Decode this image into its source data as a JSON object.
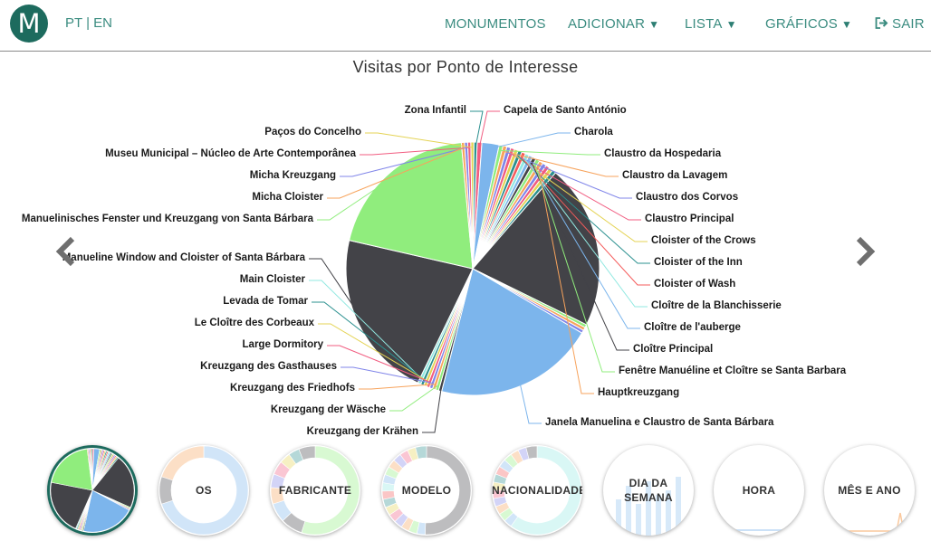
{
  "header": {
    "logo_letter": "M",
    "lang_pt": "PT",
    "lang_sep": "|",
    "lang_en": "EN",
    "nav": {
      "monumentos": "MONUMENTOS",
      "adicionar": "ADICIONAR",
      "lista": "LISTA",
      "graficos": "GRÁFICOS",
      "sair": "SAIR"
    },
    "caret_glyph": "▼"
  },
  "chart_data": {
    "type": "pie",
    "title": "Visitas por Ponto de Interesse",
    "slices": [
      {
        "label": "Capela de Santo António",
        "value": 0.6,
        "color": "#f15c80"
      },
      {
        "label": "Charola",
        "value": 2.2,
        "color": "#7cb5ec"
      },
      {
        "label": "Claustro da Hospedaria",
        "value": 0.5,
        "color": "#90ed7d"
      },
      {
        "label": "Claustro da Lavagem",
        "value": 0.5,
        "color": "#f7a35c"
      },
      {
        "label": "Claustro dos Corvos",
        "value": 0.5,
        "color": "#8085e9"
      },
      {
        "label": "Claustro Principal",
        "value": 0.5,
        "color": "#f15c80"
      },
      {
        "label": "Cloister of the Crows",
        "value": 0.5,
        "color": "#e4d354"
      },
      {
        "label": "Cloister of the Inn",
        "value": 0.5,
        "color": "#2b908f"
      },
      {
        "label": "Cloister of Wash",
        "value": 0.5,
        "color": "#f45b5b"
      },
      {
        "label": "Cloître de la Blanchisserie",
        "value": 0.5,
        "color": "#91e8e1"
      },
      {
        "label": "Cloître de l'auberge",
        "value": 0.5,
        "color": "#7cb5ec"
      },
      {
        "label": "Cloître Principal",
        "value": 0.5,
        "color": "#434348"
      },
      {
        "label": "Fenêtre Manuéline et Cloître se Santa Barbara",
        "value": 0.5,
        "color": "#90ed7d"
      },
      {
        "label": "Hauptkreuzgang",
        "value": 0.5,
        "color": "#f7a35c"
      },
      {
        "label": "",
        "value": 0.5,
        "color": "#8085e9"
      },
      {
        "label": "",
        "value": 0.5,
        "color": "#f15c80"
      },
      {
        "label": "",
        "value": 0.5,
        "color": "#e4d354"
      },
      {
        "label": "",
        "value": 0.5,
        "color": "#2b908f"
      },
      {
        "label": "",
        "value": 21.0,
        "color": "#434348"
      },
      {
        "label": "",
        "value": 0.4,
        "color": "#90ed7d"
      },
      {
        "label": "",
        "value": 0.4,
        "color": "#f7a35c"
      },
      {
        "label": "",
        "value": 0.4,
        "color": "#8085e9"
      },
      {
        "label": "Janela Manuelina e Claustro de Santa Bárbara",
        "value": 20.5,
        "color": "#7cb5ec"
      },
      {
        "label": "Kreuzgang der Krähen",
        "value": 0.4,
        "color": "#434348"
      },
      {
        "label": "Kreuzgang der Wäsche",
        "value": 0.4,
        "color": "#90ed7d"
      },
      {
        "label": "Kreuzgang des Friedhofs",
        "value": 0.4,
        "color": "#f7a35c"
      },
      {
        "label": "Kreuzgang des Gasthauses",
        "value": 0.4,
        "color": "#8085e9"
      },
      {
        "label": "Large Dormitory",
        "value": 0.4,
        "color": "#f15c80"
      },
      {
        "label": "Le Cloître des Corbeaux",
        "value": 0.4,
        "color": "#e4d354"
      },
      {
        "label": "Levada de Tomar",
        "value": 0.4,
        "color": "#2b908f"
      },
      {
        "label": "Main Cloister",
        "value": 0.4,
        "color": "#91e8e1"
      },
      {
        "label": "Manueline Window and Cloister of Santa Bárbara",
        "value": 21.5,
        "color": "#434348"
      },
      {
        "label": "Manuelinisches Fenster und Kreuzgang von Santa Bárbara",
        "value": 20.0,
        "color": "#90ed7d"
      },
      {
        "label": "Micha Cloister",
        "value": 0.4,
        "color": "#f7a35c"
      },
      {
        "label": "Micha Kreuzgang",
        "value": 0.4,
        "color": "#8085e9"
      },
      {
        "label": "Museu Municipal - Núcleo de Arte Contemporânea",
        "value": 0.4,
        "color": "#f15c80"
      },
      {
        "label": "Paços do Concelho",
        "value": 0.4,
        "color": "#e4d354"
      },
      {
        "label": "Zona Infantil",
        "value": 0.4,
        "color": "#2b908f"
      }
    ],
    "legend": "none"
  },
  "labels_left": [
    "Zona Infantil",
    "Paços do Concelho",
    "Museu Municipal – Núcleo de Arte Contemporânea",
    "Micha Kreuzgang",
    "Micha Cloister",
    "Manuelinisches Fenster und Kreuzgang von Santa Bárbara",
    "Manueline Window and Cloister of Santa Bárbara",
    "Main Cloister",
    "Levada de Tomar",
    "Le Cloître des Corbeaux",
    "Large Dormitory",
    "Kreuzgang des Gasthauses",
    "Kreuzgang des Friedhofs",
    "Kreuzgang der Wäsche",
    "Kreuzgang der Krähen"
  ],
  "labels_right": [
    "Capela de Santo António",
    "Charola",
    "Claustro da Hospedaria",
    "Claustro da Lavagem",
    "Claustro dos Corvos",
    "Claustro Principal",
    "Cloister of the Crows",
    "Cloister of the Inn",
    "Cloister of Wash",
    "Cloître de la Blanchisserie",
    "Cloître de l'auberge",
    "Cloître Principal",
    "Fenêtre Manuéline et Cloître se Santa Barbara",
    "Hauptkreuzgang",
    "Janela Manuelina e Claustro de Santa Bárbara"
  ],
  "thumbnails": [
    {
      "label": "",
      "kind": "pie",
      "active": true
    },
    {
      "label": "OS",
      "kind": "donut-os",
      "active": false
    },
    {
      "label": "FABRICANTE",
      "kind": "donut-fab",
      "active": false
    },
    {
      "label": "MODELO",
      "kind": "donut-modelo",
      "active": false
    },
    {
      "label": "NACIONALIDADE",
      "kind": "donut-nac",
      "active": false
    },
    {
      "label": "DIA DA SEMANA",
      "label_lines": [
        "DIA DA",
        "SEMANA"
      ],
      "kind": "bars",
      "active": false
    },
    {
      "label": "HORA",
      "kind": "plain",
      "active": false
    },
    {
      "label": "MÊS E ANO",
      "kind": "plain-line",
      "active": false
    }
  ],
  "colors": {
    "accent": "#1d6b5e",
    "nav_text": "#3b8c80"
  }
}
